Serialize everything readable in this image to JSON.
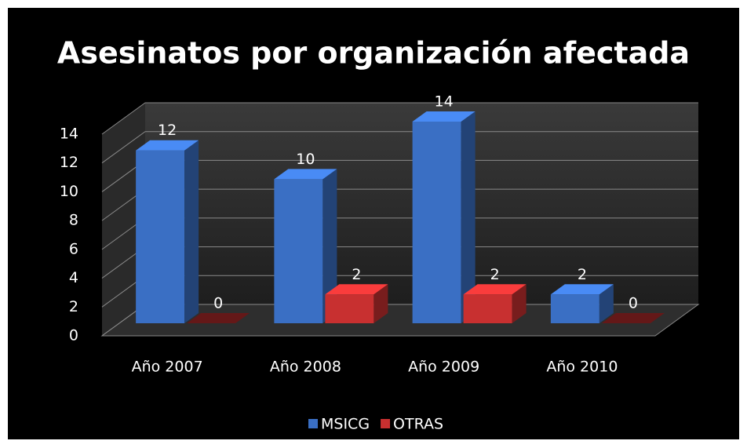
{
  "chart_data": {
    "type": "bar3d",
    "title": "Asesinatos por organización afectada",
    "categories": [
      "Año 2007",
      "Año 2008",
      "Año 2009",
      "Año 2010"
    ],
    "series": [
      {
        "name": "MSICG",
        "color": "#3a6fc4",
        "values": [
          12,
          10,
          14,
          2
        ]
      },
      {
        "name": "OTRAS",
        "color": "#c83030",
        "values": [
          0,
          2,
          2,
          0
        ]
      }
    ],
    "ylim": [
      0,
      14
    ],
    "yticks": [
      0,
      2,
      4,
      6,
      8,
      10,
      12,
      14
    ],
    "grid": true,
    "legend": "bottom"
  }
}
